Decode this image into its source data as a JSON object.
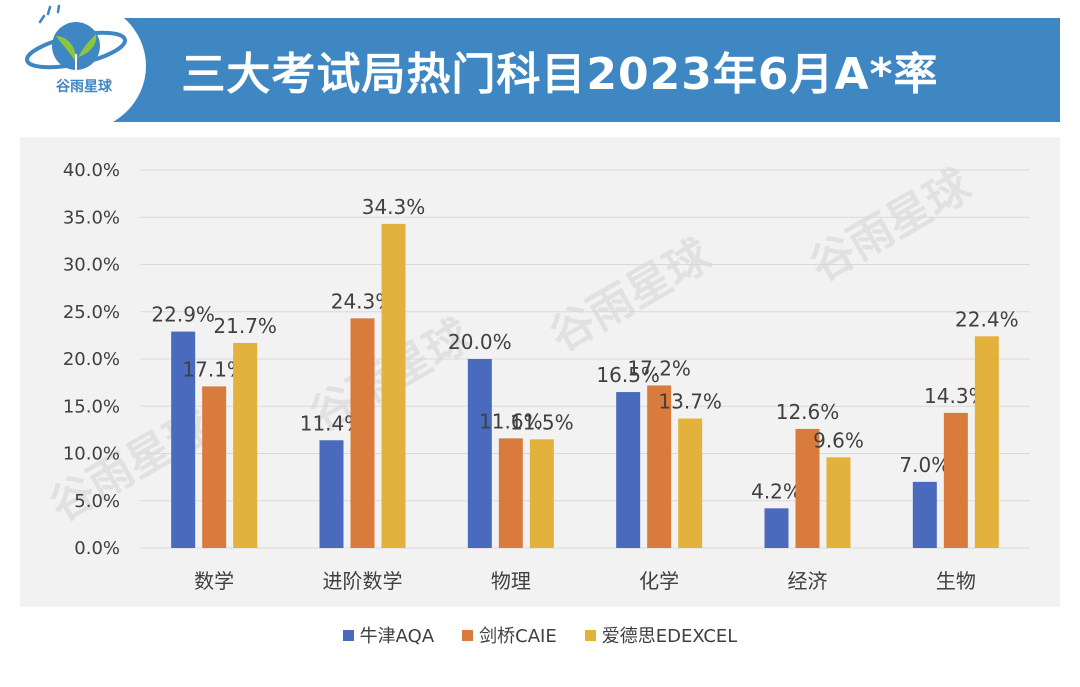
{
  "header": {
    "title": "三大考试局热门科目2023年6月A*率",
    "logo_text": "谷雨星球"
  },
  "watermark_text": "谷雨星球",
  "chart_data": {
    "type": "bar",
    "title": "三大考试局热门科目2023年6月A*率",
    "categories": [
      "数学",
      "进阶数学",
      "物理",
      "化学",
      "经济",
      "生物"
    ],
    "series": [
      {
        "name": "牛津AQA",
        "color": "#4a6bbd",
        "values": [
          22.9,
          11.4,
          20.0,
          16.5,
          4.2,
          7.0
        ]
      },
      {
        "name": "剑桥CAIE",
        "color": "#d97b3c",
        "values": [
          17.1,
          24.3,
          11.6,
          17.2,
          12.6,
          14.3
        ]
      },
      {
        "name": "爱德思EDEXCEL",
        "color": "#e3b23c",
        "values": [
          21.7,
          34.3,
          11.5,
          13.7,
          9.6,
          22.4
        ]
      }
    ],
    "yticks": [
      "0.0%",
      "5.0%",
      "10.0%",
      "15.0%",
      "20.0%",
      "25.0%",
      "30.0%",
      "35.0%",
      "40.0%"
    ],
    "ylim": [
      0,
      40
    ],
    "y_unit": "%",
    "grid": true,
    "legend_position": "bottom"
  },
  "colors": {
    "banner": "#3f87c2",
    "plot_background": "#f2f2f2",
    "gridline": "#d9d9d9"
  }
}
